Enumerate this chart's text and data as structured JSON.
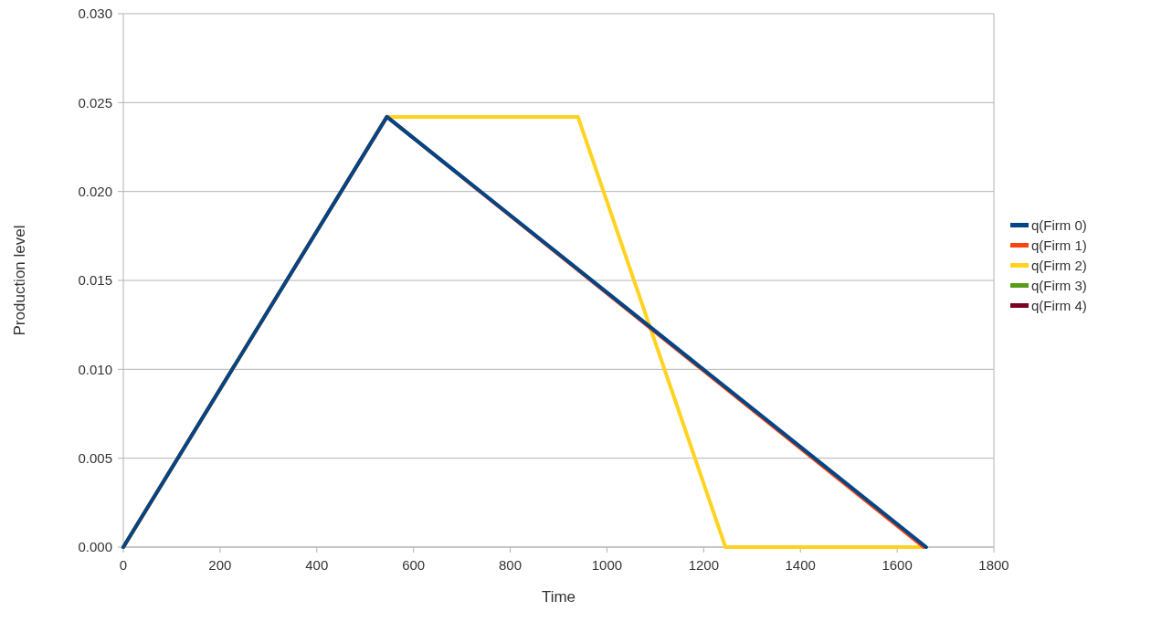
{
  "chart_data": {
    "type": "line",
    "xlabel": "Time",
    "ylabel": "Production level",
    "xlim": [
      0,
      1800
    ],
    "xticks": [
      0,
      200,
      400,
      600,
      800,
      1000,
      1200,
      1400,
      1600,
      1800
    ],
    "ylim": [
      0,
      0.03
    ],
    "yticks": [
      {
        "value": 0,
        "label": "0.000"
      },
      {
        "value": 0.005,
        "label": "0.005"
      },
      {
        "value": 0.01,
        "label": "0.010"
      },
      {
        "value": 0.015,
        "label": "0.015"
      },
      {
        "value": 0.02,
        "label": "0.020"
      },
      {
        "value": 0.025,
        "label": "0.025"
      },
      {
        "value": 0.03,
        "label": "0.030"
      }
    ],
    "grid": "y",
    "legend": "right",
    "line_style": "solid",
    "series": [
      {
        "name": "q(Firm 0)",
        "color": "#004586",
        "x": [
          0,
          545,
          1660
        ],
        "values": [
          0,
          0.0242,
          0
        ]
      },
      {
        "name": "q(Firm 1)",
        "color": "#ff420e",
        "x": [
          0,
          545,
          1655
        ],
        "values": [
          0,
          0.0242,
          0
        ]
      },
      {
        "name": "q(Firm 2)",
        "color": "#ffd320",
        "x": [
          0,
          545,
          940,
          1245,
          1650
        ],
        "values": [
          0,
          0.0242,
          0.0242,
          0,
          0
        ]
      },
      {
        "name": "q(Firm 3)",
        "color": "#579d1c"
      },
      {
        "name": "q(Firm 4)",
        "color": "#7e0021"
      }
    ]
  }
}
